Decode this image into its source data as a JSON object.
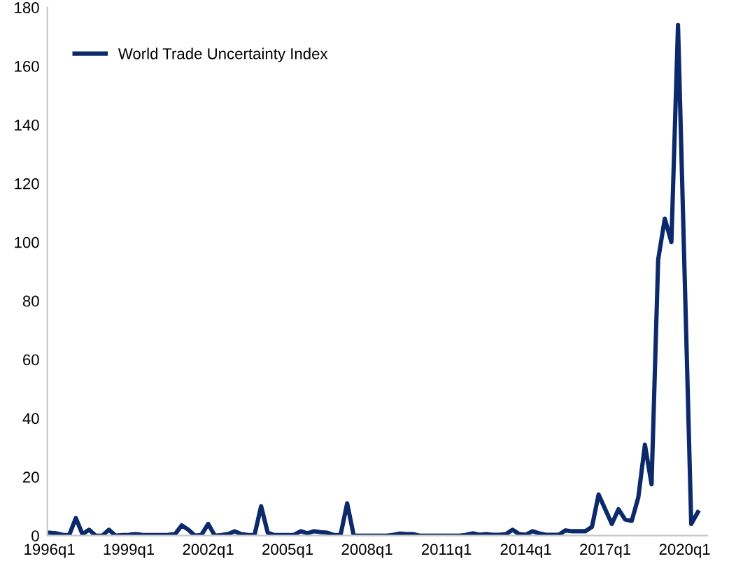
{
  "chart_data": {
    "type": "line",
    "categories": [
      "1996q1",
      null,
      null,
      null,
      null,
      null,
      null,
      null,
      null,
      null,
      null,
      null,
      "1999q1",
      null,
      null,
      null,
      null,
      null,
      null,
      null,
      null,
      null,
      null,
      null,
      "2002q1",
      null,
      null,
      null,
      null,
      null,
      null,
      null,
      null,
      null,
      null,
      null,
      "2005q1",
      null,
      null,
      null,
      null,
      null,
      null,
      null,
      null,
      null,
      null,
      null,
      "2008q1",
      null,
      null,
      null,
      null,
      null,
      null,
      null,
      null,
      null,
      null,
      null,
      "2011q1",
      null,
      null,
      null,
      null,
      null,
      null,
      null,
      null,
      null,
      null,
      null,
      "2014q1",
      null,
      null,
      null,
      null,
      null,
      null,
      null,
      null,
      null,
      null,
      null,
      "2017q1",
      null,
      null,
      null,
      null,
      null,
      null,
      null,
      null,
      null,
      null,
      null,
      "2020q1",
      null,
      null
    ],
    "series": [
      {
        "name": "World Trade Uncertainty Index",
        "color": "#0c2a6b",
        "values": [
          1,
          0.8,
          0.3,
          0.2,
          6,
          0.5,
          2,
          0,
          0,
          2,
          0,
          0.2,
          0.3,
          0.5,
          0.3,
          0.2,
          0.2,
          0.2,
          0.3,
          0.5,
          3.5,
          2,
          0,
          0.3,
          4,
          0,
          0.2,
          0.5,
          1.5,
          0.5,
          0.2,
          0.2,
          10,
          1,
          0.2,
          0.2,
          0.2,
          0.3,
          1.5,
          0.8,
          1.5,
          1.2,
          1,
          0.2,
          0.2,
          11,
          0,
          0,
          0,
          0,
          0,
          0,
          0.3,
          0.7,
          0.5,
          0.5,
          0,
          0,
          0,
          0,
          0,
          0,
          0,
          0.3,
          0.8,
          0.3,
          0.5,
          0.3,
          0.3,
          0.5,
          2,
          0.5,
          0.3,
          1.5,
          0.8,
          0.3,
          0.3,
          0.3,
          1.8,
          1.5,
          1.5,
          1.5,
          3,
          14,
          9,
          4,
          9,
          5.5,
          5,
          13,
          31,
          17.5,
          94,
          108,
          100,
          174,
          89,
          4,
          8
        ]
      }
    ],
    "ylim": [
      0,
      180
    ],
    "yticks": [
      0,
      20,
      40,
      60,
      80,
      100,
      120,
      140,
      160,
      180
    ],
    "grid": false,
    "legend": "top left",
    "marker": "none",
    "line_style": "solid"
  }
}
